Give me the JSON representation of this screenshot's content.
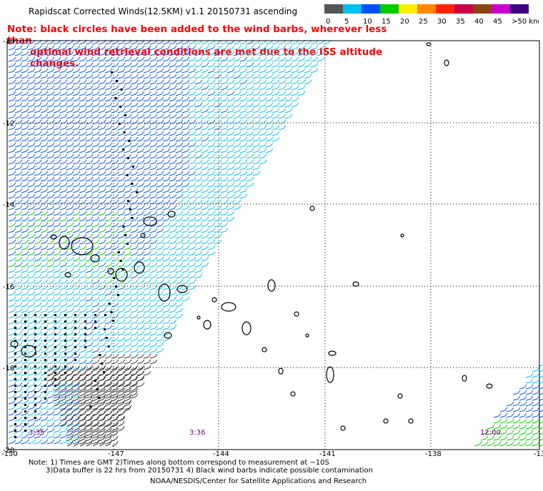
{
  "title": "Rapidscat Corrected Winds(12.5KM) v1.1 20150731 ascending",
  "note": {
    "line1": "Note: black circles have been added to the wind barbs, wherever less than",
    "line2": "optimal wind retrieval conditions are met due to the ISS altitude changes."
  },
  "legend": {
    "labels": [
      "0",
      "5",
      "10",
      "15",
      "20",
      "25",
      "30",
      "35",
      "40",
      "45",
      ">50 knots"
    ],
    "colors": [
      "#555555",
      "#00c0f0",
      "#0050ff",
      "#00cc00",
      "#ffee00",
      "#ff8800",
      "#ff2200",
      "#cc0044",
      "#8b4513",
      "#cc00cc",
      "#400080"
    ]
  },
  "map": {
    "lat_labels": [
      "-10",
      "-12",
      "-14",
      "-16",
      "-18",
      "-20"
    ],
    "lon_labels": [
      "-150",
      "-147",
      "-144",
      "-141",
      "-138",
      "-13"
    ],
    "time_labels": [
      "3:35",
      "3:36",
      "12:00"
    ],
    "colors": {
      "grid": "#000000",
      "land": "#000000",
      "time": "#800080"
    }
  },
  "footer": {
    "line1": "Note: 1) Times are GMT 2)Times along bottom correspond to measurement at ~10S",
    "line2": "3)Data buffer is 22 hrs from 20150731 4) Black wind barbs indicate possible contamination",
    "credit": "NOAA/NESDIS/Center for Satellite Applications and Research"
  }
}
